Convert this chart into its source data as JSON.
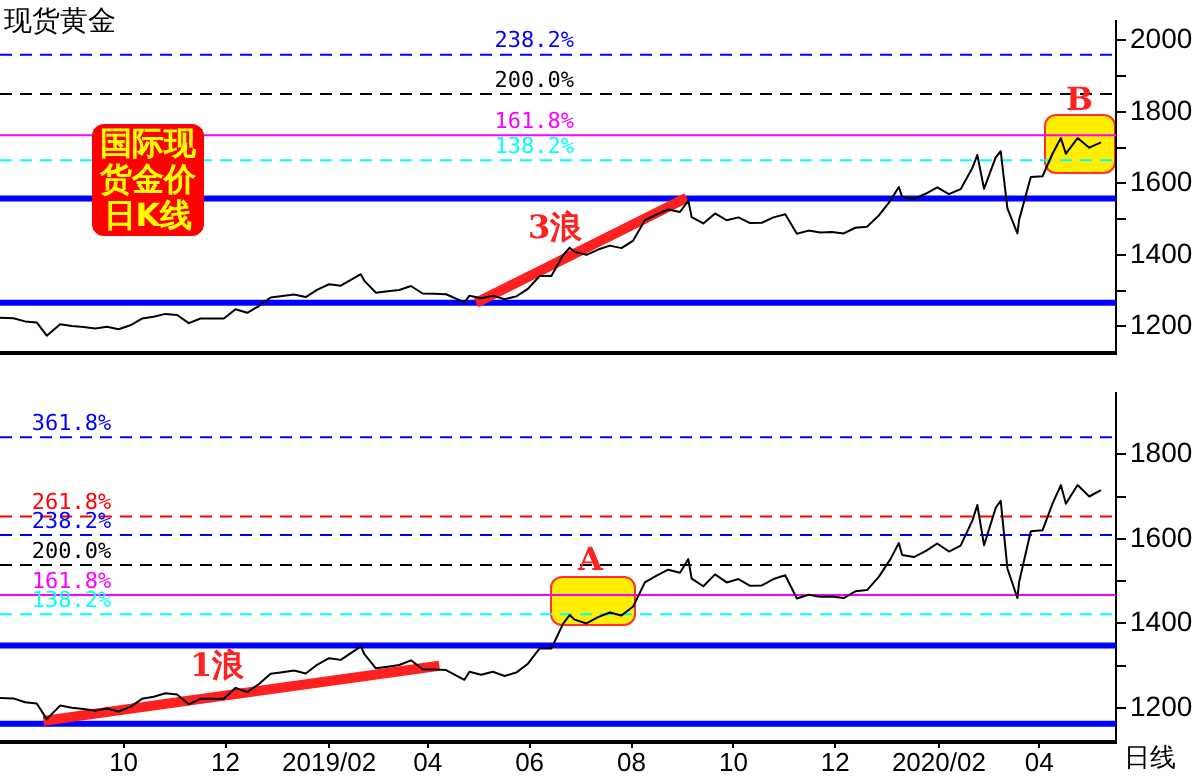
{
  "chart_data": [
    {
      "type": "line",
      "title": "现货黄金",
      "annotations": [
        "国际现货金价日K线",
        "3浪",
        "B",
        {
          "text": "238.2%",
          "x": "2019-05-11",
          "y": 1960
        },
        {
          "text": "200.0%",
          "x": "2019-05-11",
          "y": 1850
        },
        {
          "text": "161.8%",
          "x": "2019-05-11",
          "y": 1735
        },
        {
          "text": "138.2%",
          "x": "2019-05-11",
          "y": 1665
        }
      ],
      "xlim": [
        "2018-07-19",
        "2020-05-17"
      ],
      "ylim": [
        1125,
        2055
      ],
      "yticks": [
        1200,
        {
          "value": 1300,
          "label": null
        },
        1400,
        {
          "value": 1500,
          "label": null
        },
        1600,
        {
          "value": 1700,
          "label": null
        },
        1800,
        {
          "value": 1900,
          "label": null
        },
        2000
      ],
      "tick_labels": "y",
      "ref_lines": [
        {
          "axis": "y",
          "value": 1960,
          "color": "#0000ff",
          "line_style": "dashed"
        },
        {
          "axis": "y",
          "value": 1850,
          "color": "#000000",
          "line_style": "dashed"
        },
        {
          "axis": "y",
          "value": 1735,
          "color": "#ff00ff",
          "line_style": "solid"
        },
        {
          "axis": "y",
          "value": 1665,
          "color": "#00ffff",
          "line_style": "dashed"
        },
        {
          "axis": "y",
          "value": 1558,
          "color": "#0000ff",
          "line_style": "solid"
        },
        {
          "axis": "y",
          "value": 1266,
          "color": "#0000ff",
          "line_style": "solid"
        }
      ],
      "series": [
        {
          "type": "line",
          "color": "#000000",
          "x": [
            "2018-07-19",
            "2018-07-27",
            "2018-08-03",
            "2018-08-10",
            "2018-08-16",
            "2018-08-24",
            "2018-08-31",
            "2018-09-07",
            "2018-09-14",
            "2018-09-21",
            "2018-09-28",
            "2018-10-05",
            "2018-10-12",
            "2018-10-19",
            "2018-10-26",
            "2018-11-02",
            "2018-11-09",
            "2018-11-16",
            "2018-11-23",
            "2018-11-30",
            "2018-12-07",
            "2018-12-14",
            "2018-12-21",
            "2018-12-28",
            "2019-01-04",
            "2019-01-11",
            "2019-01-18",
            "2019-01-25",
            "2019-02-01",
            "2019-02-08",
            "2019-02-20",
            "2019-02-22",
            "2019-03-01",
            "2019-03-08",
            "2019-03-15",
            "2019-03-22",
            "2019-03-29",
            "2019-04-05",
            "2019-04-12",
            "2019-04-23",
            "2019-04-26",
            "2019-05-03",
            "2019-05-10",
            "2019-05-17",
            "2019-05-24",
            "2019-05-31",
            "2019-06-07",
            "2019-06-14",
            "2019-06-21",
            "2019-06-25",
            "2019-06-28",
            "2019-07-05",
            "2019-07-12",
            "2019-07-19",
            "2019-07-26",
            "2019-08-02",
            "2019-08-09",
            "2019-08-16",
            "2019-08-23",
            "2019-08-30",
            "2019-09-04",
            "2019-09-06",
            "2019-09-13",
            "2019-09-20",
            "2019-09-27",
            "2019-10-04",
            "2019-10-11",
            "2019-10-18",
            "2019-10-25",
            "2019-11-01",
            "2019-11-08",
            "2019-11-15",
            "2019-11-22",
            "2019-11-29",
            "2019-12-06",
            "2019-12-13",
            "2019-12-20",
            "2019-12-27",
            "2020-01-03",
            "2020-01-08",
            "2020-01-10",
            "2020-01-17",
            "2020-01-24",
            "2020-01-31",
            "2020-02-07",
            "2020-02-14",
            "2020-02-21",
            "2020-02-24",
            "2020-02-28",
            "2020-03-06",
            "2020-03-09",
            "2020-03-13",
            "2020-03-19",
            "2020-03-20",
            "2020-03-27",
            "2020-04-03",
            "2020-04-09",
            "2020-04-14",
            "2020-04-17",
            "2020-04-24",
            "2020-05-01",
            "2020-05-08"
          ],
          "values": [
            1224,
            1223,
            1214,
            1211,
            1174,
            1206,
            1201,
            1198,
            1194,
            1199,
            1192,
            1203,
            1222,
            1227,
            1235,
            1232,
            1209,
            1222,
            1222,
            1222,
            1248,
            1238,
            1257,
            1281,
            1285,
            1289,
            1282,
            1303,
            1318,
            1314,
            1346,
            1328,
            1294,
            1298,
            1302,
            1313,
            1292,
            1291,
            1290,
            1267,
            1286,
            1279,
            1286,
            1276,
            1284,
            1305,
            1341,
            1341,
            1399,
            1420,
            1409,
            1400,
            1415,
            1426,
            1419,
            1440,
            1497,
            1513,
            1527,
            1520,
            1552,
            1506,
            1488,
            1516,
            1497,
            1505,
            1489,
            1490,
            1505,
            1514,
            1459,
            1468,
            1463,
            1464,
            1460,
            1476,
            1479,
            1510,
            1552,
            1590,
            1562,
            1557,
            1571,
            1589,
            1570,
            1584,
            1643,
            1680,
            1585,
            1673,
            1690,
            1530,
            1460,
            1498,
            1618,
            1620,
            1683,
            1727,
            1683,
            1727,
            1700,
            1715
          ]
        },
        {
          "type": "line",
          "color": "#ff2020",
          "x": [
            "2019-04-30",
            "2019-09-03"
          ],
          "values": [
            1266,
            1560
          ]
        }
      ]
    },
    {
      "type": "line",
      "annotations": [
        "日线",
        "1浪",
        "A",
        {
          "text": "361.8%",
          "x": "2018-08-07",
          "y": 1840
        },
        {
          "text": "261.8%",
          "x": "2018-08-07",
          "y": 1653
        },
        {
          "text": "238.2%",
          "x": "2018-08-07",
          "y": 1609
        },
        {
          "text": "200.0%",
          "x": "2018-08-07",
          "y": 1538
        },
        {
          "text": "161.8%",
          "x": "2018-08-07",
          "y": 1467
        },
        {
          "text": "138.2%",
          "x": "2018-08-07",
          "y": 1422
        }
      ],
      "xlim": [
        "2018-07-19",
        "2020-05-17"
      ],
      "xticks": [
        {
          "value": "2018-10-01",
          "label": "10"
        },
        {
          "value": "2018-12-01",
          "label": "12"
        },
        {
          "value": "2019-02-01",
          "label": "2019/02"
        },
        {
          "value": "2019-04-01",
          "label": "04"
        },
        {
          "value": "2019-06-01",
          "label": "06"
        },
        {
          "value": "2019-08-01",
          "label": "08"
        },
        {
          "value": "2019-10-01",
          "label": "10"
        },
        {
          "value": "2019-12-01",
          "label": "12"
        },
        {
          "value": "2020-02-01",
          "label": "2020/02"
        },
        {
          "value": "2020-04-01",
          "label": "04"
        }
      ],
      "ylim": [
        1120,
        1945
      ],
      "yticks": [
        1200,
        {
          "value": 1300,
          "label": null
        },
        1400,
        {
          "value": 1500,
          "label": null
        },
        1600,
        {
          "value": 1700,
          "label": null
        },
        1800
      ],
      "ref_lines": [
        {
          "axis": "y",
          "value": 1840,
          "color": "#0000ff",
          "line_style": "dashed"
        },
        {
          "axis": "y",
          "value": 1653,
          "color": "#ff0000",
          "line_style": "dashed"
        },
        {
          "axis": "y",
          "value": 1609,
          "color": "#0000ff",
          "line_style": "dashed"
        },
        {
          "axis": "y",
          "value": 1538,
          "color": "#000000",
          "line_style": "dashed"
        },
        {
          "axis": "y",
          "value": 1467,
          "color": "#ff00ff",
          "line_style": "solid"
        },
        {
          "axis": "y",
          "value": 1422,
          "color": "#00ffff",
          "line_style": "dashed"
        },
        {
          "axis": "y",
          "value": 1348,
          "color": "#0000ff",
          "line_style": "solid"
        },
        {
          "axis": "y",
          "value": 1163,
          "color": "#0000ff",
          "line_style": "solid"
        }
      ],
      "series": [
        {
          "type": "line",
          "color": "#000000",
          "x": [
            "2018-07-19",
            "2018-07-27",
            "2018-08-03",
            "2018-08-10",
            "2018-08-16",
            "2018-08-24",
            "2018-08-31",
            "2018-09-07",
            "2018-09-14",
            "2018-09-21",
            "2018-09-28",
            "2018-10-05",
            "2018-10-12",
            "2018-10-19",
            "2018-10-26",
            "2018-11-02",
            "2018-11-09",
            "2018-11-16",
            "2018-11-23",
            "2018-11-30",
            "2018-12-07",
            "2018-12-14",
            "2018-12-21",
            "2018-12-28",
            "2019-01-04",
            "2019-01-11",
            "2019-01-18",
            "2019-01-25",
            "2019-02-01",
            "2019-02-08",
            "2019-02-20",
            "2019-02-22",
            "2019-03-01",
            "2019-03-08",
            "2019-03-15",
            "2019-03-22",
            "2019-03-29",
            "2019-04-05",
            "2019-04-12",
            "2019-04-23",
            "2019-04-26",
            "2019-05-03",
            "2019-05-10",
            "2019-05-17",
            "2019-05-24",
            "2019-05-31",
            "2019-06-07",
            "2019-06-14",
            "2019-06-21",
            "2019-06-25",
            "2019-06-28",
            "2019-07-05",
            "2019-07-12",
            "2019-07-19",
            "2019-07-26",
            "2019-08-02",
            "2019-08-09",
            "2019-08-16",
            "2019-08-23",
            "2019-08-30",
            "2019-09-04",
            "2019-09-06",
            "2019-09-13",
            "2019-09-20",
            "2019-09-27",
            "2019-10-04",
            "2019-10-11",
            "2019-10-18",
            "2019-10-25",
            "2019-11-01",
            "2019-11-08",
            "2019-11-15",
            "2019-11-22",
            "2019-11-29",
            "2019-12-06",
            "2019-12-13",
            "2019-12-20",
            "2019-12-27",
            "2020-01-03",
            "2020-01-08",
            "2020-01-10",
            "2020-01-17",
            "2020-01-24",
            "2020-01-31",
            "2020-02-07",
            "2020-02-14",
            "2020-02-21",
            "2020-02-24",
            "2020-02-28",
            "2020-03-06",
            "2020-03-09",
            "2020-03-13",
            "2020-03-19",
            "2020-03-20",
            "2020-03-27",
            "2020-04-03",
            "2020-04-09",
            "2020-04-14",
            "2020-04-17",
            "2020-04-24",
            "2020-05-01",
            "2020-05-08"
          ],
          "values": [
            1224,
            1223,
            1214,
            1211,
            1174,
            1206,
            1201,
            1198,
            1194,
            1199,
            1192,
            1203,
            1222,
            1227,
            1235,
            1232,
            1209,
            1222,
            1222,
            1222,
            1248,
            1238,
            1257,
            1281,
            1285,
            1289,
            1282,
            1303,
            1318,
            1314,
            1346,
            1328,
            1294,
            1298,
            1302,
            1313,
            1292,
            1291,
            1290,
            1267,
            1286,
            1279,
            1286,
            1276,
            1284,
            1305,
            1341,
            1341,
            1399,
            1420,
            1409,
            1400,
            1415,
            1426,
            1419,
            1440,
            1497,
            1513,
            1527,
            1520,
            1552,
            1506,
            1488,
            1516,
            1497,
            1505,
            1489,
            1490,
            1505,
            1514,
            1459,
            1468,
            1463,
            1464,
            1460,
            1476,
            1479,
            1510,
            1552,
            1590,
            1562,
            1557,
            1571,
            1589,
            1570,
            1584,
            1643,
            1680,
            1585,
            1673,
            1690,
            1530,
            1460,
            1498,
            1618,
            1620,
            1683,
            1727,
            1683,
            1727,
            1700,
            1715
          ]
        },
        {
          "type": "line",
          "color": "#ff2020",
          "x": [
            "2018-08-14",
            "2019-04-08"
          ],
          "values": [
            1170,
            1300
          ]
        }
      ]
    }
  ]
}
